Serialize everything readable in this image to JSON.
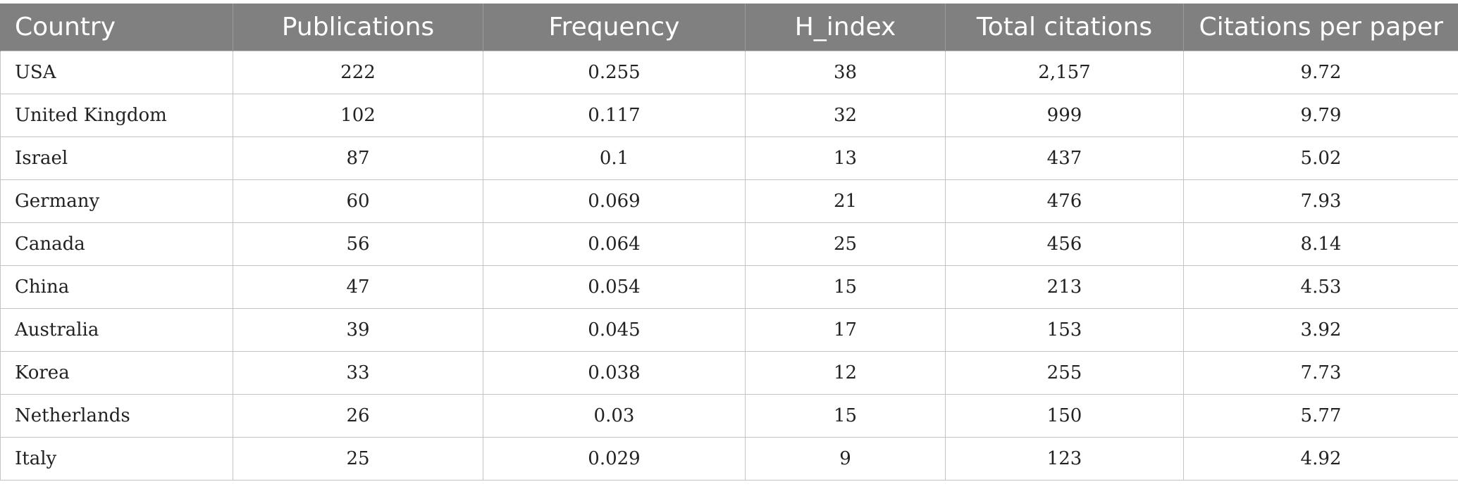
{
  "table": {
    "headers": [
      "Country",
      "Publications",
      "Frequency",
      "H_index",
      "Total citations",
      "Citations per paper"
    ],
    "rows": [
      [
        "USA",
        "222",
        "0.255",
        "38",
        "2,157",
        "9.72"
      ],
      [
        "United Kingdom",
        "102",
        "0.117",
        "32",
        "999",
        "9.79"
      ],
      [
        "Israel",
        "87",
        "0.1",
        "13",
        "437",
        "5.02"
      ],
      [
        "Germany",
        "60",
        "0.069",
        "21",
        "476",
        "7.93"
      ],
      [
        "Canada",
        "56",
        "0.064",
        "25",
        "456",
        "8.14"
      ],
      [
        "China",
        "47",
        "0.054",
        "15",
        "213",
        "4.53"
      ],
      [
        "Australia",
        "39",
        "0.045",
        "17",
        "153",
        "3.92"
      ],
      [
        "Korea",
        "33",
        "0.038",
        "12",
        "255",
        "7.73"
      ],
      [
        "Netherlands",
        "26",
        "0.03",
        "15",
        "150",
        "5.77"
      ],
      [
        "Italy",
        "25",
        "0.029",
        "9",
        "123",
        "4.92"
      ]
    ]
  },
  "colors": {
    "header_background": "#808080",
    "header_text": "#ffffff",
    "grid_line": "#c4c4c4"
  }
}
